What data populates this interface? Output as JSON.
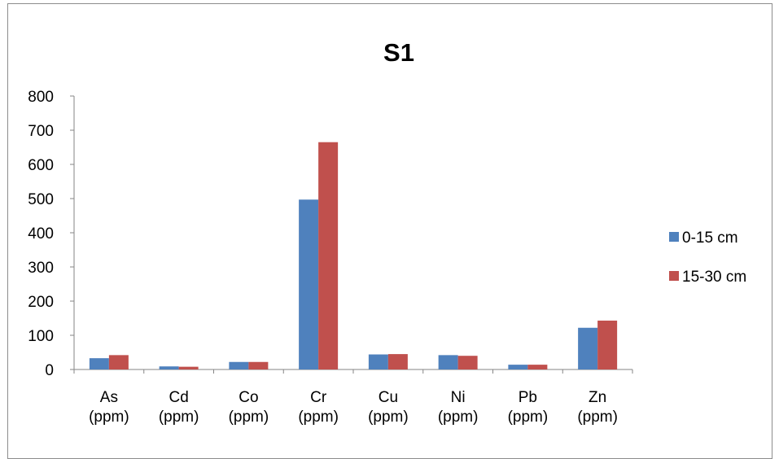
{
  "chart_data": {
    "type": "bar",
    "title": "S1",
    "xlabel": "",
    "ylabel": "",
    "categories": [
      [
        "As",
        "(ppm)"
      ],
      [
        "Cd",
        "(ppm)"
      ],
      [
        "Co",
        "(ppm)"
      ],
      [
        "Cr",
        "(ppm)"
      ],
      [
        "Cu",
        "(ppm)"
      ],
      [
        "Ni",
        "(ppm)"
      ],
      [
        "Pb",
        "(ppm)"
      ],
      [
        "Zn",
        "(ppm)"
      ]
    ],
    "series": [
      {
        "name": "0-15 cm",
        "color": "#4f81bd",
        "values": [
          33,
          9,
          22,
          497,
          44,
          42,
          14,
          122
        ]
      },
      {
        "name": "15-30 cm",
        "color": "#c0504d",
        "values": [
          42,
          8,
          22,
          665,
          45,
          40,
          14,
          143
        ]
      }
    ],
    "ylim": [
      0,
      800
    ],
    "yticks": [
      0,
      100,
      200,
      300,
      400,
      500,
      600,
      700,
      800
    ],
    "grid": false,
    "legend": "right"
  }
}
